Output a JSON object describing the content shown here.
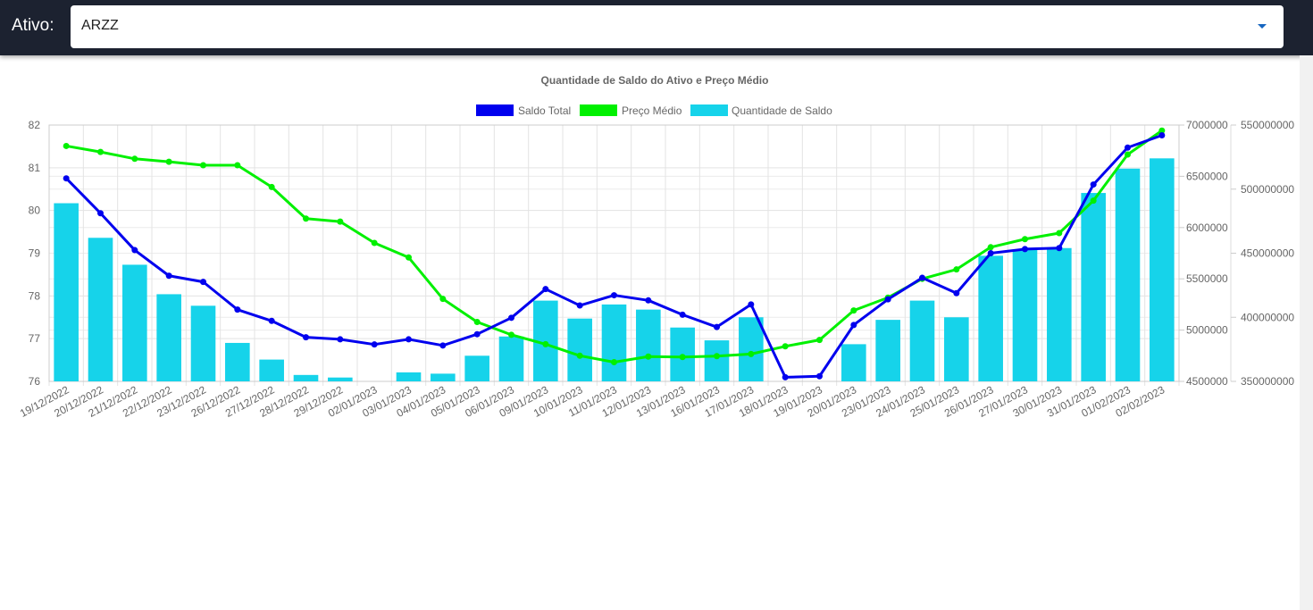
{
  "header": {
    "label": "Ativo:",
    "select_value": "ARZZ"
  },
  "colors": {
    "header_bg": "#1c2230",
    "saldo_total": "#0000ee",
    "preco_medio": "#00f000",
    "quantidade_saldo": "#16d3ea"
  },
  "chart_data": {
    "type": "bar",
    "title": "Quantidade de Saldo do Ativo e Preço Médio",
    "legend_position": "top",
    "grid": true,
    "categories": [
      "19/12/2022",
      "20/12/2022",
      "21/12/2022",
      "22/12/2022",
      "23/12/2022",
      "26/12/2022",
      "27/12/2022",
      "28/12/2022",
      "29/12/2022",
      "02/01/2023",
      "03/01/2023",
      "04/01/2023",
      "05/01/2023",
      "06/01/2023",
      "09/01/2023",
      "10/01/2023",
      "11/01/2023",
      "12/01/2023",
      "13/01/2023",
      "16/01/2023",
      "17/01/2023",
      "18/01/2023",
      "19/01/2023",
      "20/01/2023",
      "23/01/2023",
      "24/01/2023",
      "25/01/2023",
      "26/01/2023",
      "27/01/2023",
      "30/01/2023",
      "31/01/2023",
      "01/02/2023",
      "02/02/2023"
    ],
    "axes": {
      "left": {
        "min": 76,
        "max": 82,
        "ticks": [
          "82",
          "81",
          "80",
          "79",
          "78",
          "77",
          "76"
        ]
      },
      "right1": {
        "min": 4500000,
        "max": 7000000,
        "ticks": [
          "7000000",
          "6500000",
          "6000000",
          "5500000",
          "5000000",
          "4500000"
        ]
      },
      "right2": {
        "min": 350000000,
        "max": 550000000,
        "ticks": [
          "550000000",
          "500000000",
          "450000000",
          "400000000",
          "350000000"
        ]
      }
    },
    "series": [
      {
        "name": "Saldo Total",
        "type": "line",
        "axis": "right1",
        "values": [
          6480000,
          6140000,
          5780000,
          5530000,
          5470000,
          5200000,
          5090000,
          4930000,
          4910000,
          4860000,
          4910000,
          4850000,
          4960000,
          5120000,
          5400000,
          5240000,
          5340000,
          5290000,
          5150000,
          5030000,
          5250000,
          4540000,
          4550000,
          5050000,
          5300000,
          5510000,
          5360000,
          5750000,
          5790000,
          5800000,
          6420000,
          6780000,
          6900000
        ]
      },
      {
        "name": "Preço Médio",
        "type": "line",
        "axis": "left",
        "values": [
          81.51,
          81.37,
          81.21,
          81.14,
          81.06,
          81.06,
          80.55,
          79.81,
          79.74,
          79.24,
          78.9,
          77.93,
          77.39,
          77.09,
          76.87,
          76.6,
          76.45,
          76.58,
          76.57,
          76.59,
          76.64,
          76.82,
          76.97,
          77.66,
          77.96,
          78.4,
          78.62,
          79.14,
          79.33,
          79.47,
          80.23,
          81.31,
          81.87
        ]
      },
      {
        "name": "Quantidade de Saldo",
        "type": "bar",
        "axis": "right2",
        "values": [
          489000000,
          462000000,
          441000000,
          418000000,
          409000000,
          380000000,
          367000000,
          355000000,
          353000000,
          349000000,
          357000000,
          356000000,
          370000000,
          385000000,
          413000000,
          399000000,
          410000000,
          406000000,
          392000000,
          382000000,
          400000000,
          342000000,
          343000000,
          379000000,
          398000000,
          413000000,
          400000000,
          448000000,
          453000000,
          454000000,
          497000000,
          516000000,
          524000000
        ]
      }
    ]
  }
}
